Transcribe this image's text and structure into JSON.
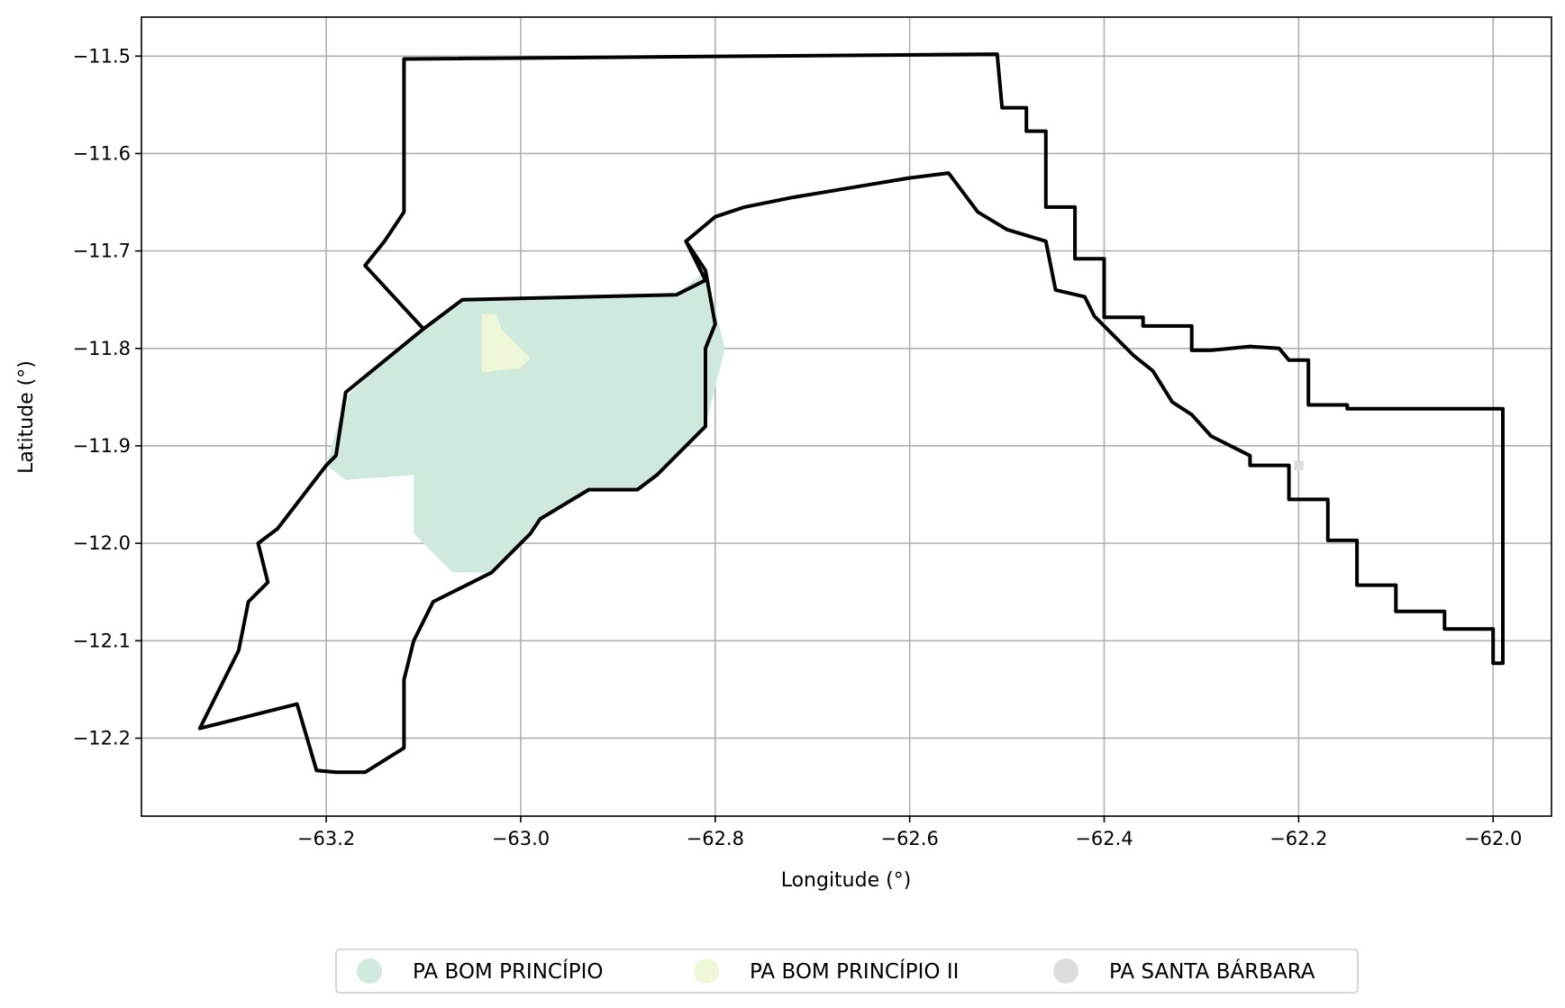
{
  "chart_data": {
    "type": "map",
    "title": "",
    "xlabel": "Longitude (°)",
    "ylabel": "Latitude (°)",
    "xlim": [
      -63.39,
      -61.94
    ],
    "ylim": [
      -12.28,
      -11.46
    ],
    "grid": true,
    "x_ticks": [
      -63.2,
      -63.0,
      -62.8,
      -62.6,
      -62.4,
      -62.2,
      -62.0
    ],
    "y_ticks": [
      -11.5,
      -11.6,
      -11.7,
      -11.8,
      -11.9,
      -12.0,
      -12.1,
      -12.2
    ],
    "x_tick_labels": [
      "−63.2",
      "−63.0",
      "−62.8",
      "−62.6",
      "−62.4",
      "−62.2",
      "−62.0"
    ],
    "y_tick_labels": [
      "−11.5",
      "−11.6",
      "−11.7",
      "−11.8",
      "−11.9",
      "−12.0",
      "−12.1",
      "−12.2"
    ],
    "legend_position": "bottom-center",
    "series": [
      {
        "name": "PA BOM PRINCÍPIO",
        "color": "#cfeadc",
        "polygon": [
          [
            -63.06,
            -11.75
          ],
          [
            -62.84,
            -11.745
          ],
          [
            -62.81,
            -11.72
          ],
          [
            -62.79,
            -11.8
          ],
          [
            -62.81,
            -11.88
          ],
          [
            -62.86,
            -11.93
          ],
          [
            -62.88,
            -11.945
          ],
          [
            -62.93,
            -11.945
          ],
          [
            -62.98,
            -11.975
          ],
          [
            -63.03,
            -12.03
          ],
          [
            -63.07,
            -12.03
          ],
          [
            -63.11,
            -11.99
          ],
          [
            -63.11,
            -11.93
          ],
          [
            -63.18,
            -11.935
          ],
          [
            -63.2,
            -11.92
          ],
          [
            -63.18,
            -11.85
          ],
          [
            -63.12,
            -11.795
          ]
        ]
      },
      {
        "name": "PA BOM PRINCÍPIO II",
        "color": "#eef7d8",
        "polygon": [
          [
            -63.04,
            -11.765
          ],
          [
            -63.025,
            -11.765
          ],
          [
            -63.02,
            -11.78
          ],
          [
            -63.01,
            -11.79
          ],
          [
            -62.99,
            -11.81
          ],
          [
            -63.0,
            -11.82
          ],
          [
            -63.02,
            -11.822
          ],
          [
            -63.04,
            -11.825
          ]
        ]
      },
      {
        "name": "PA SANTA BÁRBARA",
        "color": "#dcdcdc",
        "polygon": [
          [
            -62.205,
            -11.915
          ],
          [
            -62.195,
            -11.915
          ],
          [
            -62.195,
            -11.925
          ],
          [
            -62.205,
            -11.925
          ]
        ]
      }
    ],
    "outlines": [
      {
        "name": "north",
        "points": [
          [
            -63.12,
            -11.503
          ],
          [
            -62.51,
            -11.498
          ],
          [
            -62.505,
            -11.553
          ],
          [
            -62.48,
            -11.553
          ],
          [
            -62.48,
            -11.577
          ],
          [
            -62.46,
            -11.577
          ],
          [
            -62.46,
            -11.655
          ],
          [
            -62.43,
            -11.655
          ],
          [
            -62.43,
            -11.708
          ],
          [
            -62.4,
            -11.708
          ],
          [
            -62.4,
            -11.768
          ],
          [
            -62.36,
            -11.768
          ],
          [
            -62.36,
            -11.777
          ],
          [
            -62.31,
            -11.777
          ],
          [
            -62.31,
            -11.802
          ],
          [
            -62.29,
            -11.802
          ],
          [
            -62.25,
            -11.798
          ],
          [
            -62.22,
            -11.8
          ],
          [
            -62.21,
            -11.812
          ],
          [
            -62.19,
            -11.812
          ],
          [
            -62.19,
            -11.858
          ],
          [
            -62.15,
            -11.858
          ],
          [
            -62.15,
            -11.862
          ],
          [
            -61.99,
            -11.862
          ],
          [
            -61.99,
            -12.123
          ],
          [
            -62.0,
            -12.123
          ],
          [
            -62.0,
            -12.088
          ],
          [
            -62.05,
            -12.088
          ],
          [
            -62.05,
            -12.07
          ],
          [
            -62.1,
            -12.07
          ],
          [
            -62.1,
            -12.043
          ],
          [
            -62.14,
            -12.043
          ],
          [
            -62.14,
            -11.997
          ],
          [
            -62.17,
            -11.997
          ],
          [
            -62.17,
            -11.955
          ],
          [
            -62.21,
            -11.955
          ],
          [
            -62.21,
            -11.92
          ],
          [
            -62.25,
            -11.92
          ],
          [
            -62.25,
            -11.91
          ],
          [
            -62.29,
            -11.89
          ],
          [
            -62.31,
            -11.868
          ],
          [
            -62.33,
            -11.855
          ],
          [
            -62.35,
            -11.823
          ],
          [
            -62.37,
            -11.807
          ],
          [
            -62.39,
            -11.787
          ],
          [
            -62.41,
            -11.767
          ],
          [
            -62.42,
            -11.747
          ],
          [
            -62.45,
            -11.74
          ],
          [
            -62.46,
            -11.69
          ],
          [
            -62.5,
            -11.678
          ],
          [
            -62.53,
            -11.66
          ],
          [
            -62.56,
            -11.62
          ],
          [
            -62.6,
            -11.625
          ],
          [
            -62.66,
            -11.635
          ],
          [
            -62.72,
            -11.645
          ],
          [
            -62.77,
            -11.655
          ],
          [
            -62.8,
            -11.665
          ],
          [
            -62.83,
            -11.69
          ],
          [
            -62.81,
            -11.73
          ],
          [
            -62.84,
            -11.745
          ],
          [
            -63.06,
            -11.75
          ],
          [
            -63.1,
            -11.78
          ],
          [
            -63.16,
            -11.715
          ],
          [
            -63.14,
            -11.69
          ],
          [
            -63.12,
            -11.66
          ],
          [
            -63.12,
            -11.503
          ]
        ]
      },
      {
        "name": "south",
        "points": [
          [
            -63.1,
            -11.78
          ],
          [
            -63.18,
            -11.845
          ],
          [
            -63.19,
            -11.91
          ],
          [
            -63.2,
            -11.92
          ],
          [
            -63.25,
            -11.985
          ],
          [
            -63.27,
            -12.0
          ],
          [
            -63.26,
            -12.04
          ],
          [
            -63.28,
            -12.06
          ],
          [
            -63.29,
            -12.11
          ],
          [
            -63.31,
            -12.15
          ],
          [
            -63.33,
            -12.19
          ],
          [
            -63.23,
            -12.165
          ],
          [
            -63.21,
            -12.233
          ],
          [
            -63.19,
            -12.235
          ],
          [
            -63.16,
            -12.235
          ],
          [
            -63.12,
            -12.21
          ],
          [
            -63.12,
            -12.14
          ],
          [
            -63.11,
            -12.1
          ],
          [
            -63.09,
            -12.06
          ],
          [
            -63.06,
            -12.045
          ],
          [
            -63.03,
            -12.03
          ],
          [
            -62.99,
            -11.99
          ],
          [
            -62.98,
            -11.975
          ],
          [
            -62.93,
            -11.945
          ],
          [
            -62.88,
            -11.945
          ],
          [
            -62.86,
            -11.93
          ],
          [
            -62.81,
            -11.88
          ],
          [
            -62.81,
            -11.8
          ],
          [
            -62.8,
            -11.775
          ],
          [
            -62.81,
            -11.72
          ],
          [
            -62.83,
            -11.69
          ]
        ]
      }
    ]
  },
  "legend": {
    "items": [
      {
        "label": "PA BOM PRINCÍPIO",
        "color": "#cfeadc"
      },
      {
        "label": "PA BOM PRINCÍPIO II",
        "color": "#eef7d8"
      },
      {
        "label": "PA SANTA BÁRBARA",
        "color": "#dcdcdc"
      }
    ]
  }
}
